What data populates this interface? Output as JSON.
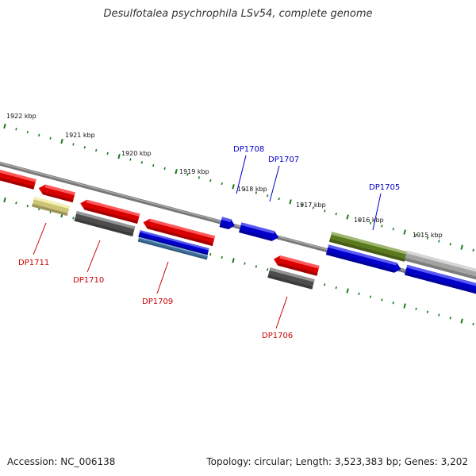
{
  "title": "Desulfotalea psychrophila LSv54, complete genome",
  "footer": {
    "accession": "Accession: NC_006138",
    "stats": "Topology: circular; Length: 3,523,383 bp; Genes: 3,202"
  },
  "scale_labels": [
    "1922 kbp",
    "1921 kbp",
    "1920 kbp",
    "1919 kbp",
    "1918 kbp",
    "1917 kbp",
    "1916 kbp",
    "1915 kbp"
  ],
  "colors": {
    "backbone": "#777777",
    "tick": "#1a7a1a",
    "red": "#ff0000",
    "blue": "#0000ee",
    "gray": "#5a5a5a",
    "lightgray": "#c0c0c0",
    "olive": "#6b8e23",
    "khaki": "#f0e68c",
    "steelblue": "#4682b4",
    "label_forward": "#0000cc",
    "label_reverse": "#cc0000"
  },
  "features": [
    {
      "name": "",
      "color": "red"
    },
    {
      "name": "",
      "color": "red"
    },
    {
      "name": "DP1711",
      "color": "khaki"
    },
    {
      "name": "",
      "color": "red"
    },
    {
      "name": "DP1710",
      "color": "gray"
    },
    {
      "name": "",
      "color": "red"
    },
    {
      "name": "DP1709",
      "color": "blue"
    },
    {
      "name": "",
      "color": "steelblue"
    },
    {
      "name": "DP1708",
      "color": "blue"
    },
    {
      "name": "DP1707",
      "color": "blue"
    },
    {
      "name": "",
      "color": "red"
    },
    {
      "name": "DP1706",
      "color": "gray"
    },
    {
      "name": "",
      "color": "olive"
    },
    {
      "name": "DP1705",
      "color": "blue"
    },
    {
      "name": "",
      "color": "blue"
    },
    {
      "name": "",
      "color": "lightgray"
    }
  ]
}
